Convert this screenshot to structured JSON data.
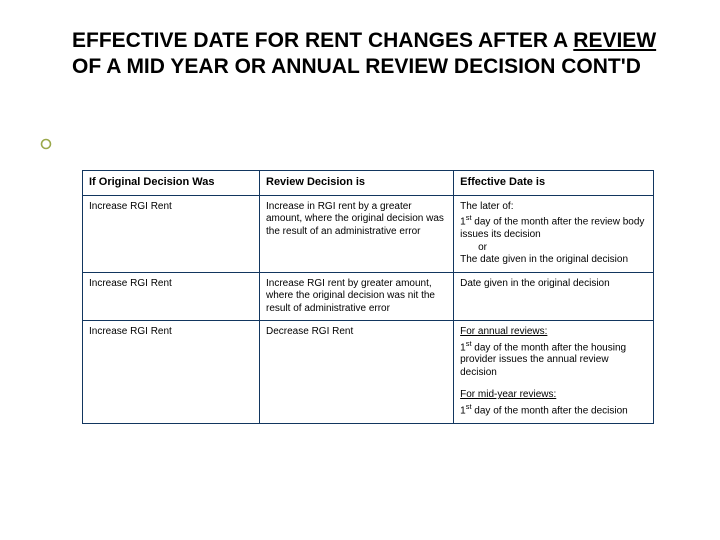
{
  "title": {
    "part1": "EFFECTIVE DATE FOR RENT CHANGES AFTER A ",
    "underlined": "REVIEW ",
    "part2": "OF A MID YEAR OR ANNUAL REVIEW DECISION CONT'D"
  },
  "bullet": {
    "stroke": "#9aa84a",
    "fill": "#ffffff"
  },
  "table": {
    "border_color": "#12365f",
    "header_fontsize": 11,
    "cell_fontsize": 10,
    "columns": [
      {
        "label": "If Original Decision Was"
      },
      {
        "label": "Review Decision is"
      },
      {
        "label": "Effective Date is"
      }
    ],
    "rows": [
      {
        "c1": "Increase RGI Rent",
        "c2": "Increase in RGI rent by a greater amount, where the original decision was the result of an administrative error",
        "c3_lines": [
          {
            "text": "The later of:"
          },
          {
            "text_pre": "1",
            "sup": "st",
            "text_post": " day of the month after the review body issues its decision"
          },
          {
            "indent": true,
            "text": "or"
          },
          {
            "text": "The date given in the original decision"
          }
        ]
      },
      {
        "c1": "Increase RGI Rent",
        "c2": "Increase RGI rent by greater amount, where the original decision was nit the result of administrative error",
        "c3_lines": [
          {
            "text": "Date given in the original decision"
          }
        ]
      },
      {
        "c1": "Increase RGI Rent",
        "c2": "Decrease RGI Rent",
        "c3_lines": [
          {
            "ul": true,
            "text": "For annual reviews:"
          },
          {
            "text_pre": "1",
            "sup": "st",
            "text_post": " day of the month after the housing provider issues the annual review decision"
          },
          {
            "spacer": true
          },
          {
            "ul": true,
            "text": "For mid-year reviews:"
          },
          {
            "text_pre": "1",
            "sup": "st",
            "text_post": " day of the month after the decision"
          }
        ]
      }
    ]
  }
}
